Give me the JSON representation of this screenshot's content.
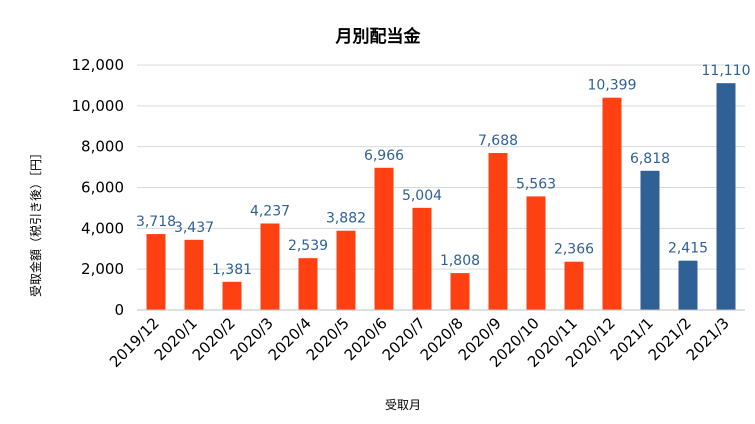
{
  "chart_data": {
    "type": "bar",
    "title": "月別配当金",
    "xlabel": "受取月",
    "ylabel": "受取金額（税引き後）［円］",
    "categories": [
      "2019/12",
      "2020/1",
      "2020/2",
      "2020/3",
      "2020/4",
      "2020/5",
      "2020/6",
      "2020/7",
      "2020/8",
      "2020/9",
      "2020/10",
      "2020/11",
      "2020/12",
      "2021/1",
      "2021/2",
      "2021/3"
    ],
    "values": [
      3718,
      3437,
      1381,
      4237,
      2539,
      3882,
      6966,
      5004,
      1808,
      7688,
      5563,
      2366,
      10399,
      6818,
      2415,
      11110
    ],
    "value_labels": [
      "3,718",
      "3,437",
      "1,381",
      "4,237",
      "2,539",
      "3,882",
      "6,966",
      "5,004",
      "1,808",
      "7,688",
      "5,563",
      "2,366",
      "10,399",
      "6,818",
      "2,415",
      "11,110"
    ],
    "bar_colors": [
      "#ff4010",
      "#ff4010",
      "#ff4010",
      "#ff4010",
      "#ff4010",
      "#ff4010",
      "#ff4010",
      "#ff4010",
      "#ff4010",
      "#ff4010",
      "#ff4010",
      "#ff4010",
      "#ff4010",
      "#2f6196",
      "#2f6196",
      "#2f6196"
    ],
    "ylim": [
      0,
      12000
    ],
    "yticks": [
      0,
      2000,
      4000,
      6000,
      8000,
      10000,
      12000
    ],
    "ytick_labels": [
      "0",
      "2,000",
      "4,000",
      "6,000",
      "8,000",
      "10,000",
      "12,000"
    ],
    "grid": true,
    "legend": "none",
    "label_color": "#2f6196"
  }
}
